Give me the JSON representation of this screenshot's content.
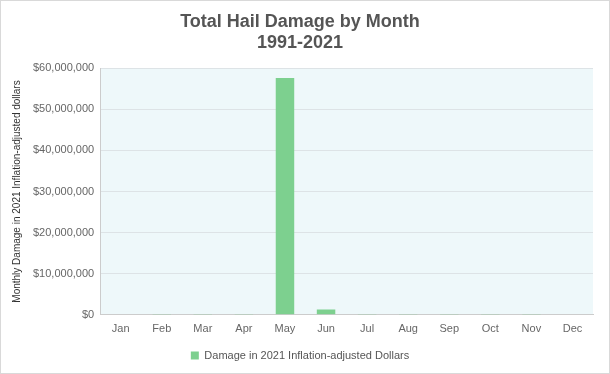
{
  "chart_data": {
    "type": "bar",
    "title": "Total Hail Damage by Month",
    "subtitle": "1991-2021",
    "y_label": "Monthly Damage in 2021 Inflation-adjusted dollars",
    "categories": [
      "Jan",
      "Feb",
      "Mar",
      "Apr",
      "May",
      "Jun",
      "Jul",
      "Aug",
      "Sep",
      "Oct",
      "Nov",
      "Dec"
    ],
    "series": [
      {
        "name": "Damage in 2021 Inflation-adjusted Dollars",
        "color": "#7dd08f",
        "values": [
          0,
          200000,
          200000,
          200000,
          57600000,
          1300000,
          200000,
          200000,
          200000,
          200000,
          200000,
          0
        ]
      }
    ],
    "ylim": [
      0,
      60000000
    ],
    "yticks": [
      {
        "value": 0,
        "label": "$0"
      },
      {
        "value": 10000000,
        "label": "$10,000,000"
      },
      {
        "value": 20000000,
        "label": "$20,000,000"
      },
      {
        "value": 30000000,
        "label": "$30,000,000"
      },
      {
        "value": 40000000,
        "label": "$40,000,000"
      },
      {
        "value": 50000000,
        "label": "$50,000,000"
      },
      {
        "value": 60000000,
        "label": "$60,000,000"
      }
    ],
    "grid": true,
    "legend": "bottom"
  }
}
